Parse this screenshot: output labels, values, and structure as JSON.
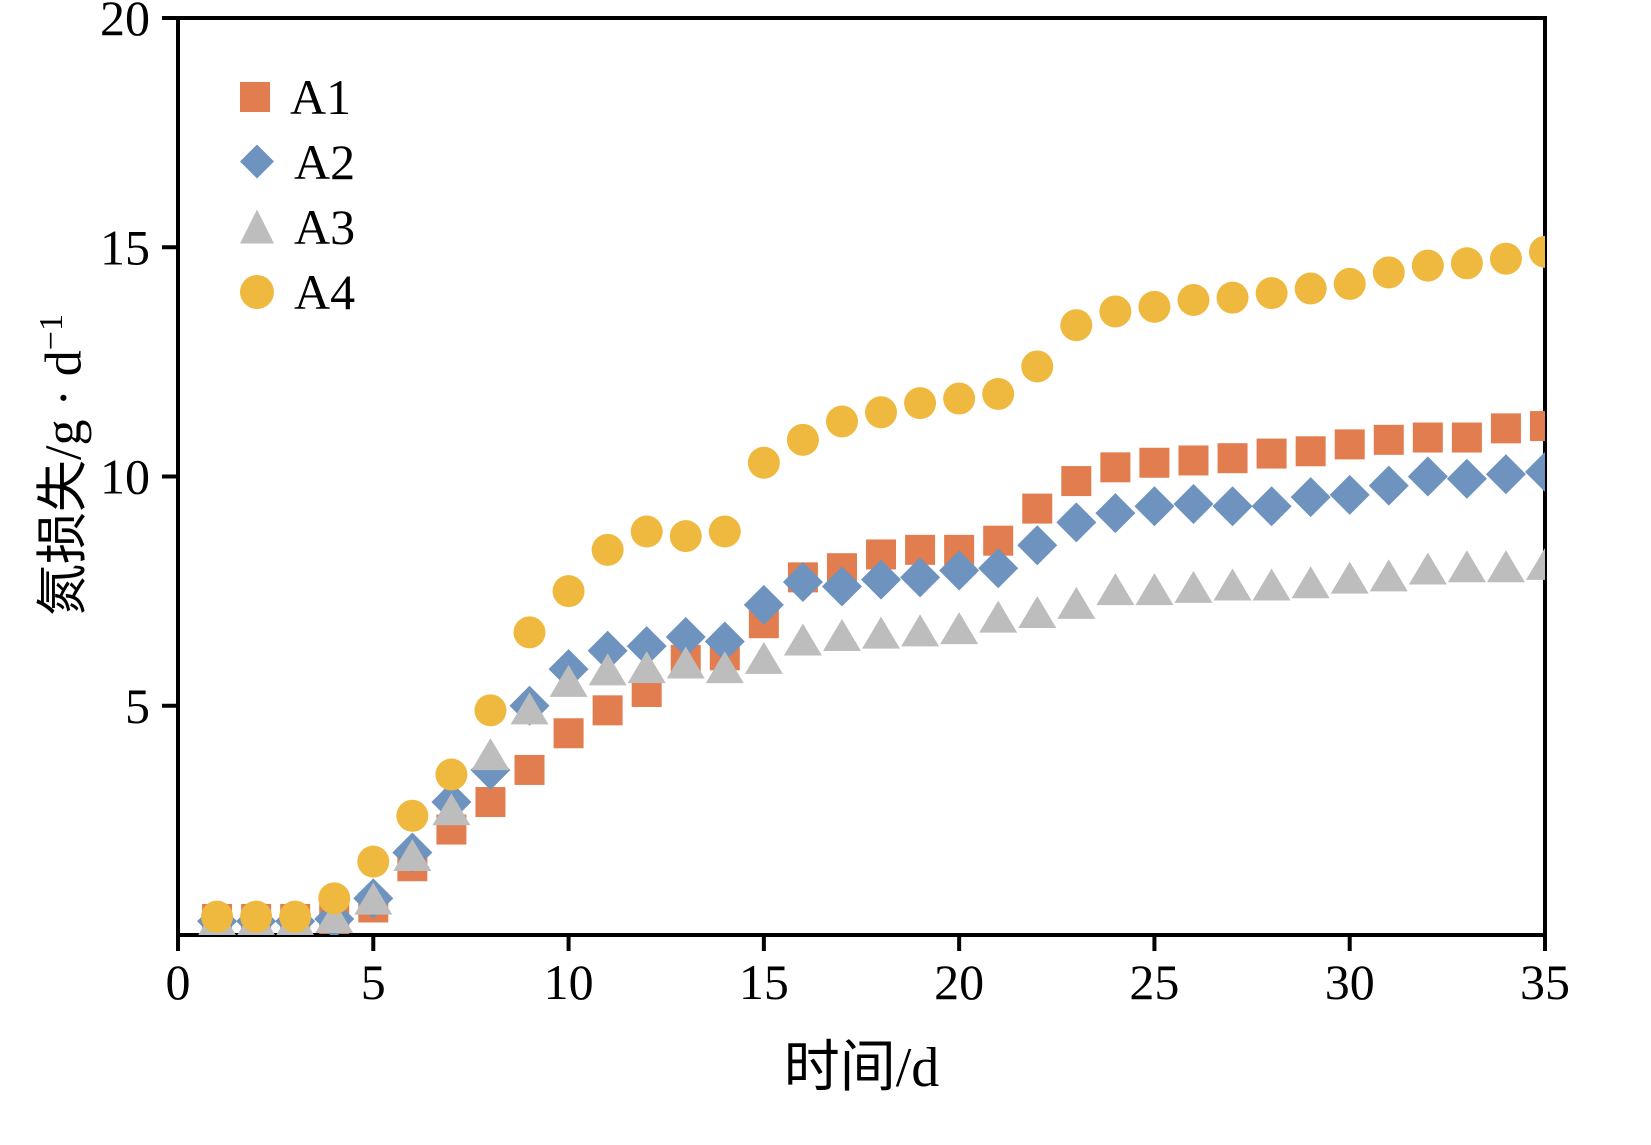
{
  "chart_data": {
    "type": "scatter",
    "title": "",
    "xlabel": "时间/d",
    "ylabel": "氮损失/g · d⁻¹",
    "ylabel_main": "氮损失/g · d",
    "ylabel_sup": "−1",
    "xlim": [
      0,
      35
    ],
    "ylim": [
      0,
      20
    ],
    "xticks": [
      0,
      5,
      10,
      15,
      20,
      25,
      30,
      35
    ],
    "yticks": [
      5,
      10,
      15,
      20
    ],
    "grid": false,
    "legend_position": "top-left-inside",
    "axis_color": "#000000",
    "background": "#ffffff",
    "x": [
      1,
      2,
      3,
      4,
      5,
      6,
      7,
      8,
      9,
      10,
      11,
      12,
      13,
      14,
      15,
      16,
      17,
      18,
      19,
      20,
      21,
      22,
      23,
      24,
      25,
      26,
      27,
      28,
      29,
      30,
      31,
      32,
      33,
      34,
      35
    ],
    "series": [
      {
        "name": "A1",
        "marker": "square",
        "color": "#E27D4F",
        "values": [
          0.35,
          0.35,
          0.35,
          0.35,
          0.6,
          1.5,
          2.3,
          2.9,
          3.6,
          4.4,
          4.9,
          5.3,
          6.0,
          6.1,
          6.8,
          7.8,
          8.0,
          8.3,
          8.4,
          8.4,
          8.6,
          9.3,
          9.9,
          10.2,
          10.3,
          10.35,
          10.4,
          10.5,
          10.55,
          10.7,
          10.8,
          10.85,
          10.85,
          11.05,
          11.1
        ]
      },
      {
        "name": "A2",
        "marker": "diamond",
        "color": "#6D93BE",
        "values": [
          0.3,
          0.3,
          0.3,
          0.35,
          0.8,
          1.8,
          2.9,
          3.6,
          5.0,
          5.8,
          6.2,
          6.3,
          6.5,
          6.4,
          7.2,
          7.7,
          7.6,
          7.75,
          7.8,
          7.95,
          8.0,
          8.5,
          9.0,
          9.2,
          9.35,
          9.4,
          9.35,
          9.35,
          9.55,
          9.6,
          9.8,
          10.0,
          9.95,
          10.05,
          10.1
        ]
      },
      {
        "name": "A3",
        "marker": "triangle",
        "color": "#BDBDBD",
        "values": [
          0.3,
          0.3,
          0.3,
          0.35,
          0.75,
          1.7,
          2.7,
          3.9,
          4.9,
          5.5,
          5.75,
          5.8,
          5.9,
          5.8,
          6.0,
          6.4,
          6.5,
          6.55,
          6.6,
          6.65,
          6.9,
          7.0,
          7.2,
          7.5,
          7.5,
          7.55,
          7.6,
          7.6,
          7.65,
          7.75,
          7.8,
          7.95,
          8.0,
          8.0,
          8.05
        ]
      },
      {
        "name": "A4",
        "marker": "circle",
        "color": "#EFB93F",
        "values": [
          0.4,
          0.4,
          0.4,
          0.8,
          1.6,
          2.6,
          3.5,
          4.9,
          6.6,
          7.5,
          8.4,
          8.8,
          8.7,
          8.8,
          10.3,
          10.8,
          11.2,
          11.4,
          11.6,
          11.7,
          11.8,
          12.4,
          13.3,
          13.6,
          13.7,
          13.85,
          13.9,
          14.0,
          14.1,
          14.2,
          14.45,
          14.6,
          14.65,
          14.75,
          14.9
        ]
      }
    ]
  }
}
